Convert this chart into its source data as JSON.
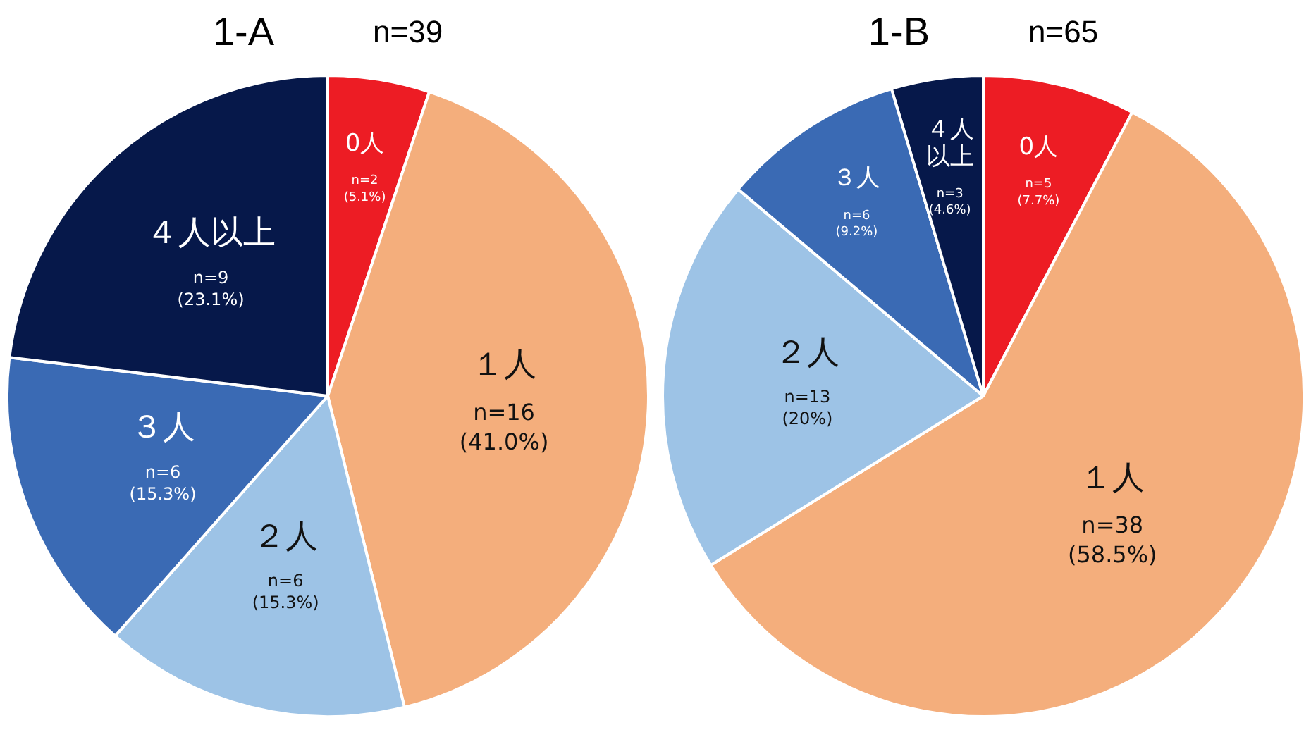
{
  "chart_data": [
    {
      "type": "pie",
      "title": "1-A",
      "subtitle": "n=39",
      "categories": [
        "0人",
        "１人",
        "２人",
        "３人",
        "４人以上"
      ],
      "values": [
        2,
        16,
        6,
        6,
        9
      ],
      "colors": [
        "#ed1c24",
        "#f4ae7c",
        "#9dc3e6",
        "#3a6ab4",
        "#06184a"
      ],
      "value_labels": [
        "n=2\n(5.1%)",
        "n=16\n(41.0%)",
        "n=6\n(15.3%)",
        "n=6\n(15.3%)",
        "n=9\n(23.1%)"
      ]
    },
    {
      "type": "pie",
      "title": "1-B",
      "subtitle": "n=65",
      "categories": [
        "0人",
        "１人",
        "２人",
        "３人",
        "４人以上"
      ],
      "values": [
        5,
        38,
        13,
        6,
        3
      ],
      "colors": [
        "#ed1c24",
        "#f4ae7c",
        "#9dc3e6",
        "#3a6ab4",
        "#06184a"
      ],
      "value_labels": [
        "n=5\n(7.7%)",
        "n=38\n(58.5%)",
        "n=13\n(20%)",
        "n=6\n(9.2%)",
        "n=3\n(4.6%)"
      ]
    }
  ]
}
